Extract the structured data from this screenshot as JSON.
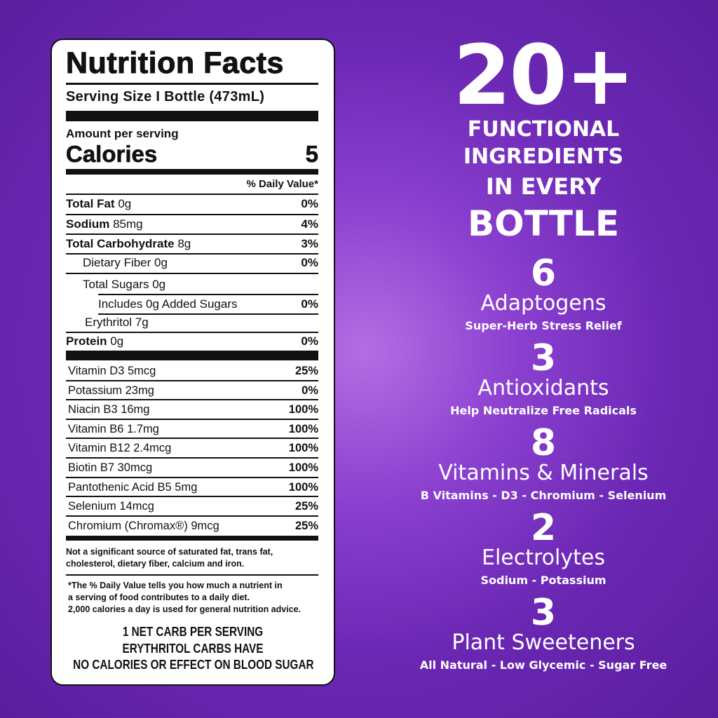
{
  "label": {
    "title": "Nutrition Facts",
    "serving_size": "Serving Size I Bottle (473mL)",
    "amount_per_serving": "Amount per serving",
    "calories_label": "Calories",
    "calories_value": "5",
    "daily_value_header": "% Daily Value*",
    "nutrients": [
      {
        "name": "Total Fat",
        "amount": "0g",
        "pct": "0%"
      },
      {
        "name": "Sodium",
        "amount": "85mg",
        "pct": "4%"
      },
      {
        "name": "Total Carbohydrate",
        "amount": "8g",
        "pct": "3%"
      },
      {
        "name": "Dietary Fiber 0g",
        "pct": "0%"
      },
      {
        "name": "Total Sugars 0g"
      },
      {
        "name": "Includes 0g Added Sugars",
        "pct": "0%"
      },
      {
        "name": "Erythritol 7g"
      },
      {
        "name": "Protein",
        "amount": "0g",
        "pct": "0%"
      }
    ],
    "vitamins": [
      {
        "name": "Vitamin D3 5mcg",
        "pct": "25%"
      },
      {
        "name": "Potassium 23mg",
        "pct": "0%"
      },
      {
        "name": "Niacin B3 16mg",
        "pct": "100%"
      },
      {
        "name": "Vitamin B6 1.7mg",
        "pct": "100%"
      },
      {
        "name": "Vitamin B12 2.4mcg",
        "pct": "100%"
      },
      {
        "name": "Biotin B7 30mcg",
        "pct": "100%"
      },
      {
        "name": "Pantothenic Acid B5 5mg",
        "pct": "100%"
      },
      {
        "name": "Selenium 14mcg",
        "pct": "25%"
      },
      {
        "name": "Chromium (Chromax®) 9mcg",
        "pct": "25%"
      }
    ],
    "note": [
      "Not a significant source of saturated fat, trans fat,",
      "cholesterol, dietary fiber, calcium and iron."
    ],
    "footnote": [
      "*The % Daily Value tells you how much a nutrient in",
      "a serving of food contributes to a daily diet.",
      "2,000 calories a day is used for general nutrition advice."
    ],
    "net_carb": [
      "1 NET CARB PER SERVING",
      "ERYTHRITOL CARBS HAVE",
      "NO CALORIES OR EFFECT ON BLOOD SUGAR"
    ]
  },
  "headline": {
    "count": "20+",
    "lines": [
      "FUNCTIONAL",
      "INGREDIENTS",
      "IN EVERY",
      "BOTTLE"
    ]
  },
  "groups": [
    {
      "count": "6",
      "name": "Adaptogens",
      "desc": "Super-Herb Stress Relief"
    },
    {
      "count": "3",
      "name": "Antioxidants",
      "desc": "Help Neutralize Free Radicals"
    },
    {
      "count": "8",
      "name": "Vitamins & Minerals",
      "desc": "B Vitamins - D3 - Chromium - Selenium"
    },
    {
      "count": "2",
      "name": "Electrolytes",
      "desc": "Sodium - Potassium"
    },
    {
      "count": "3",
      "name": "Plant Sweeteners",
      "desc": "All Natural - Low Glycemic - Sugar Free"
    }
  ],
  "colors": {
    "background": "#6a27b3",
    "background_glow": "#b46ee3",
    "label_bg": "#ffffff",
    "text": "#111111"
  }
}
